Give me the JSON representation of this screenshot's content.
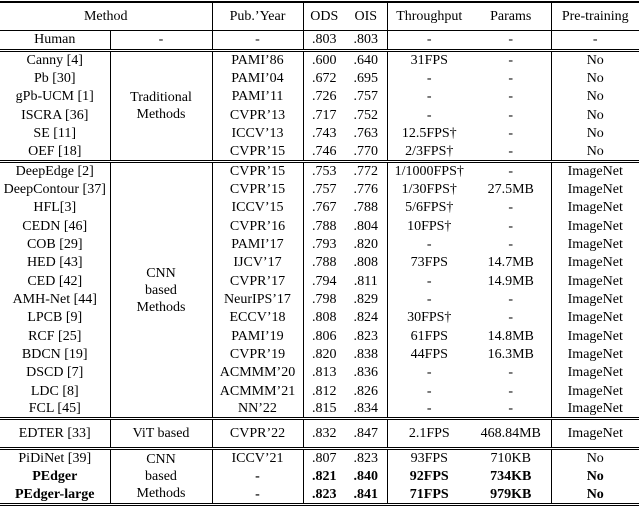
{
  "table": {
    "header": {
      "method": "Method",
      "pub_year": "Pub.’Year",
      "ods": "ODS",
      "ois": "OIS",
      "throughput": "Throughput",
      "params": "Params",
      "pretraining": "Pre-training"
    },
    "human_row": {
      "method": "Human",
      "category": "-",
      "pub_year": "-",
      "ods": ".803",
      "ois": ".803",
      "throughput": "-",
      "params": "-",
      "pretraining": "-"
    },
    "sections": [
      {
        "id": "traditional",
        "category_lines": [
          "Traditional",
          "Methods"
        ],
        "rows": [
          {
            "method": "Canny [4]",
            "pub_year": "PAMI’86",
            "ods": ".600",
            "ois": ".640",
            "throughput": "31FPS",
            "params": "-",
            "pretraining": "No"
          },
          {
            "method": "Pb [30]",
            "pub_year": "PAMI’04",
            "ods": ".672",
            "ois": ".695",
            "throughput": "-",
            "params": "-",
            "pretraining": "No"
          },
          {
            "method": "gPb-UCM [1]",
            "pub_year": "PAMI’11",
            "ods": ".726",
            "ois": ".757",
            "throughput": "-",
            "params": "-",
            "pretraining": "No"
          },
          {
            "method": "ISCRA [36]",
            "pub_year": "CVPR’13",
            "ods": ".717",
            "ois": ".752",
            "throughput": "-",
            "params": "-",
            "pretraining": "No"
          },
          {
            "method": "SE [11]",
            "pub_year": "ICCV’13",
            "ods": ".743",
            "ois": ".763",
            "throughput": "12.5FPS†",
            "params": "-",
            "pretraining": "No"
          },
          {
            "method": "OEF [18]",
            "pub_year": "CVPR’15",
            "ods": ".746",
            "ois": ".770",
            "throughput": "2/3FPS†",
            "params": "-",
            "pretraining": "No"
          }
        ]
      },
      {
        "id": "cnn",
        "category_lines": [
          "CNN",
          "based",
          "Methods"
        ],
        "rows": [
          {
            "method": "DeepEdge [2]",
            "pub_year": "CVPR’15",
            "ods": ".753",
            "ois": ".772",
            "throughput": "1/1000FPS†",
            "params": "-",
            "pretraining": "ImageNet"
          },
          {
            "method": "DeepContour [37]",
            "pub_year": "CVPR’15",
            "ods": ".757",
            "ois": ".776",
            "throughput": "1/30FPS†",
            "params": "27.5MB",
            "pretraining": "ImageNet"
          },
          {
            "method": "HFL[3]",
            "pub_year": "ICCV’15",
            "ods": ".767",
            "ois": ".788",
            "throughput": "5/6FPS†",
            "params": "-",
            "pretraining": "ImageNet"
          },
          {
            "method": "CEDN [46]",
            "pub_year": "CVPR’16",
            "ods": ".788",
            "ois": ".804",
            "throughput": "10FPS†",
            "params": "-",
            "pretraining": "ImageNet"
          },
          {
            "method": "COB [29]",
            "pub_year": "PAMI’17",
            "ods": ".793",
            "ois": ".820",
            "throughput": "-",
            "params": "-",
            "pretraining": "ImageNet"
          },
          {
            "method": "HED [43]",
            "pub_year": "IJCV’17",
            "ods": ".788",
            "ois": ".808",
            "throughput": "73FPS",
            "params": "14.7MB",
            "pretraining": "ImageNet"
          },
          {
            "method": "CED [42]",
            "pub_year": "CVPR’17",
            "ods": ".794",
            "ois": ".811",
            "throughput": "-",
            "params": "14.9MB",
            "pretraining": "ImageNet"
          },
          {
            "method": "AMH-Net [44]",
            "pub_year": "NeurIPS’17",
            "ods": ".798",
            "ois": ".829",
            "throughput": "-",
            "params": "-",
            "pretraining": "ImageNet"
          },
          {
            "method": "LPCB [9]",
            "pub_year": "ECCV’18",
            "ods": ".808",
            "ois": ".824",
            "throughput": "30FPS†",
            "params": "-",
            "pretraining": "ImageNet"
          },
          {
            "method": "RCF [25]",
            "pub_year": "PAMI’19",
            "ods": ".806",
            "ois": ".823",
            "throughput": "61FPS",
            "params": "14.8MB",
            "pretraining": "ImageNet"
          },
          {
            "method": "BDCN [19]",
            "pub_year": "CVPR’19",
            "ods": ".820",
            "ois": ".838",
            "throughput": "44FPS",
            "params": "16.3MB",
            "pretraining": "ImageNet"
          },
          {
            "method": "DSCD [7]",
            "pub_year": "ACMMM’20",
            "ods": ".813",
            "ois": ".836",
            "throughput": "-",
            "params": "-",
            "pretraining": "ImageNet"
          },
          {
            "method": "LDC [8]",
            "pub_year": "ACMMM’21",
            "ods": ".812",
            "ois": ".826",
            "throughput": "-",
            "params": "-",
            "pretraining": "ImageNet"
          },
          {
            "method": "FCL [45]",
            "pub_year": "NN’22",
            "ods": ".815",
            "ois": ".834",
            "throughput": "-",
            "params": "-",
            "pretraining": "ImageNet"
          }
        ]
      },
      {
        "id": "vit",
        "category_lines": [
          "ViT based"
        ],
        "rows": [
          {
            "method": "EDTER [33]",
            "pub_year": "CVPR’22",
            "ods": ".832",
            "ois": ".847",
            "throughput": "2.1FPS",
            "params": "468.84MB",
            "pretraining": "ImageNet"
          }
        ]
      },
      {
        "id": "ours",
        "category_lines": [
          "CNN",
          "based",
          "Methods"
        ],
        "rows": [
          {
            "method": "PiDiNet [39]",
            "pub_year": "ICCV’21",
            "ods": ".807",
            "ois": ".823",
            "throughput": "93FPS",
            "params": "710KB",
            "pretraining": "No"
          },
          {
            "method": "PEdger",
            "pub_year": "-",
            "ods": ".821",
            "ois": ".840",
            "throughput": "92FPS",
            "params": "734KB",
            "pretraining": "No",
            "bold": true
          },
          {
            "method": "PEdger-large",
            "pub_year": "-",
            "ods": ".823",
            "ois": ".841",
            "throughput": "71FPS",
            "params": "979KB",
            "pretraining": "No",
            "bold": true
          }
        ]
      }
    ]
  }
}
